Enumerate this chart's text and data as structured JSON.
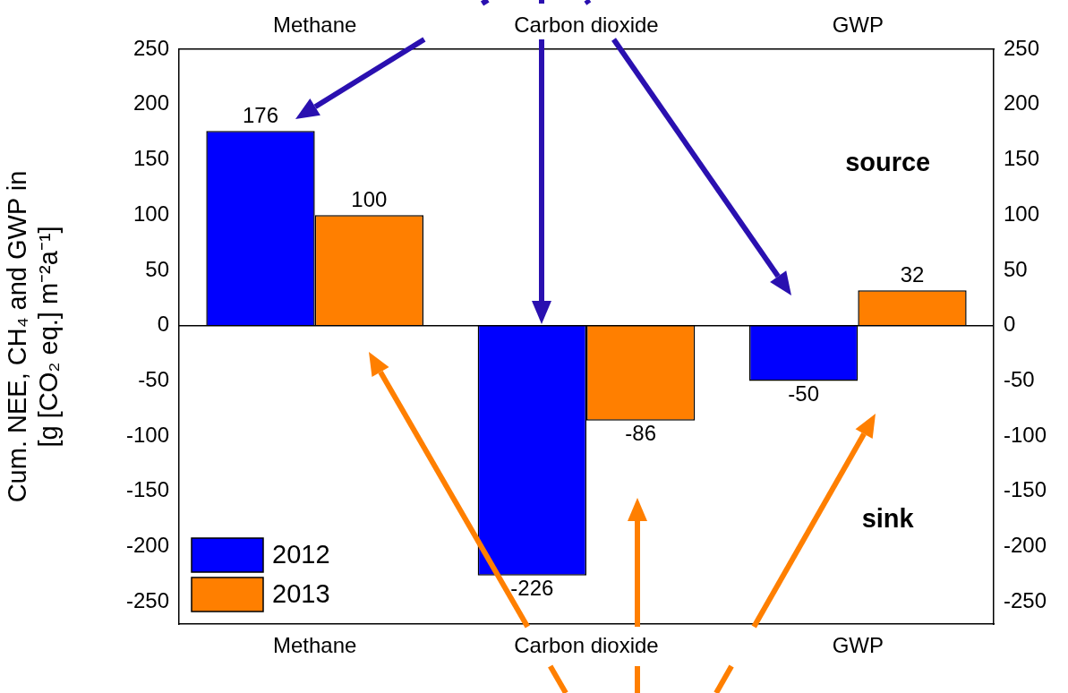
{
  "chart_data": {
    "type": "bar",
    "categories": [
      "Methane",
      "Carbon dioxide",
      "GWP"
    ],
    "ylabel": "Cum. NEE, CH₄ and GWP in\n[g [CO₂ eq.] m⁻²a⁻¹]",
    "series": [
      {
        "name": "2012",
        "color": "#0000ff",
        "values": [
          176,
          -226,
          -50
        ]
      },
      {
        "name": "2013",
        "color": "#ff7f00",
        "values": [
          100,
          -86,
          32
        ]
      }
    ],
    "ylim": [
      -270,
      250
    ],
    "yticks": [
      -250,
      -200,
      -150,
      -100,
      -50,
      0,
      50,
      100,
      150,
      200,
      250
    ],
    "y2lim": [
      -270,
      250
    ],
    "y2ticks": [
      -250,
      -200,
      -150,
      -100,
      -50,
      0,
      50,
      100,
      150,
      200,
      250
    ],
    "annotations": [
      "source",
      "sink"
    ],
    "ref_lines": [
      {
        "axis": "y",
        "value": 0,
        "color": "#000000",
        "line_style": "solid"
      }
    ],
    "data_labels": true,
    "grid": false,
    "legend": "bottom left"
  }
}
